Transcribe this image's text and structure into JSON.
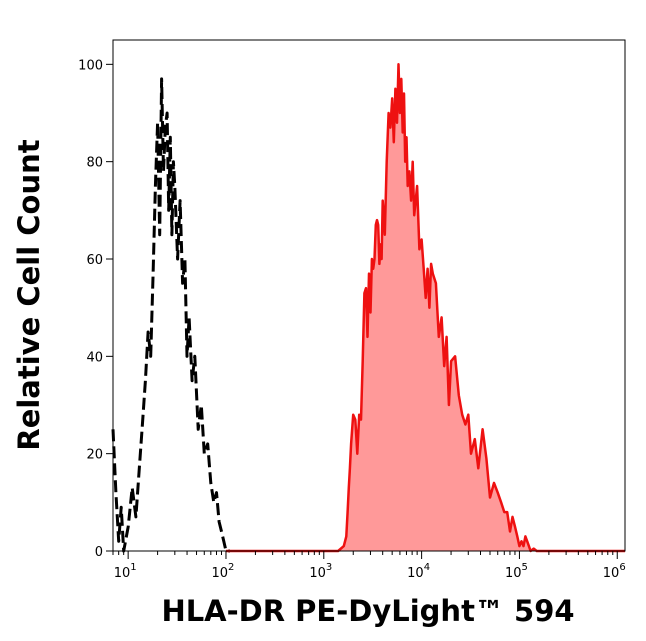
{
  "chart_data": {
    "type": "area",
    "title": "",
    "xlabel": "HLA-DR PE-DyLight™ 594",
    "ylabel": "Relative Cell Count",
    "x_scale": "log",
    "xlim": [
      7,
      1200000
    ],
    "ylim": [
      0,
      105
    ],
    "grid": false,
    "x_ticks": [
      {
        "value": 10,
        "base": "10",
        "exp": "1"
      },
      {
        "value": 100,
        "base": "10",
        "exp": "2"
      },
      {
        "value": 1000,
        "base": "10",
        "exp": "3"
      },
      {
        "value": 10000,
        "base": "10",
        "exp": "4"
      },
      {
        "value": 100000,
        "base": "10",
        "exp": "5"
      },
      {
        "value": 1000000,
        "base": "10",
        "exp": "6"
      }
    ],
    "y_ticks": [
      {
        "value": 0,
        "label": "0"
      },
      {
        "value": 20,
        "label": "20"
      },
      {
        "value": 40,
        "label": "40"
      },
      {
        "value": 60,
        "label": "60"
      },
      {
        "value": 80,
        "label": "80"
      },
      {
        "value": 100,
        "label": "100"
      }
    ],
    "colors": {
      "stained_line": "#ee1111",
      "stained_fill": "#ff9999",
      "control_line": "#000000"
    },
    "series": [
      {
        "style": "dashed",
        "color": "#000000",
        "x": [
          7,
          7.5,
          8,
          8.5,
          9,
          10,
          11,
          12,
          13,
          14,
          15,
          16,
          17,
          18,
          19,
          20,
          21,
          22,
          23,
          24,
          25,
          26,
          27,
          28,
          29,
          30,
          32,
          34,
          36,
          38,
          40,
          42,
          45,
          48,
          52,
          56,
          60,
          65,
          70,
          75,
          80,
          85,
          90,
          95,
          100,
          110
        ],
        "y": [
          25,
          12,
          2,
          9,
          0,
          5,
          13,
          7,
          17,
          26,
          35,
          45,
          40,
          57,
          75,
          88,
          65,
          97,
          78,
          87,
          90,
          70,
          85,
          65,
          80,
          75,
          60,
          72,
          55,
          60,
          40,
          48,
          35,
          40,
          25,
          30,
          20,
          22,
          14,
          10,
          12,
          6,
          4,
          2,
          0,
          0
        ]
      },
      {
        "style": "filled",
        "color": "#ee1111",
        "x": [
          100,
          500,
          1000,
          1400,
          1600,
          1700,
          1750,
          1800,
          1850,
          1900,
          2000,
          2100,
          2200,
          2300,
          2400,
          2500,
          2600,
          2700,
          2800,
          2900,
          3000,
          3100,
          3200,
          3300,
          3400,
          3500,
          3600,
          3700,
          3800,
          3900,
          4000,
          4200,
          4400,
          4600,
          4800,
          5000,
          5200,
          5400,
          5600,
          5800,
          6000,
          6200,
          6400,
          6600,
          6800,
          7000,
          7200,
          7500,
          7800,
          8100,
          8400,
          8700,
          9000,
          9500,
          10000,
          10500,
          11000,
          11500,
          12000,
          12500,
          13000,
          14000,
          15000,
          16000,
          17000,
          18000,
          19000,
          20000,
          22000,
          24000,
          26000,
          28000,
          30000,
          32000,
          35000,
          38000,
          42000,
          46000,
          50000,
          55000,
          60000,
          65000,
          70000,
          75000,
          80000,
          85000,
          90000,
          95000,
          100000,
          105000,
          110000,
          115000,
          120000,
          125000,
          130000,
          140000,
          150000,
          200000,
          500000,
          1200000
        ],
        "y": [
          0,
          0,
          0,
          0,
          1,
          3,
          8,
          13,
          17,
          22,
          28,
          27,
          20,
          28,
          27,
          39,
          53,
          54,
          44,
          57,
          49,
          60,
          58,
          60,
          67,
          68,
          67,
          59,
          63,
          60,
          72,
          65,
          80,
          90,
          87,
          93,
          84,
          95,
          88,
          100,
          90,
          97,
          86,
          94,
          80,
          85,
          75,
          78,
          72,
          80,
          69,
          72,
          75,
          62,
          64,
          58,
          52,
          58,
          50,
          59,
          57,
          55,
          44,
          48,
          38,
          44,
          30,
          39,
          40,
          32,
          28,
          26,
          28,
          20,
          23,
          17,
          25,
          19,
          11,
          14,
          12,
          10,
          8,
          8,
          4,
          7,
          5,
          3,
          1,
          2,
          1,
          3,
          2,
          1,
          0,
          0.5,
          0,
          0,
          0,
          0
        ]
      }
    ]
  }
}
